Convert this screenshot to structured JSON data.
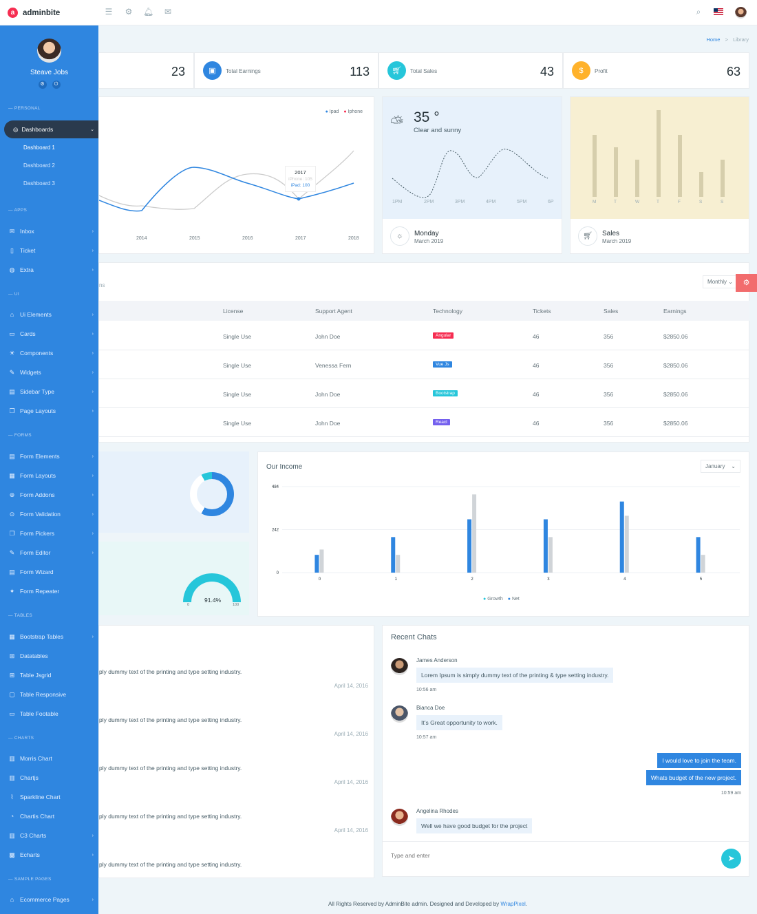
{
  "brand": {
    "name": "adminbite",
    "mark": "a"
  },
  "topbar": {
    "icons": [
      "menu-icon",
      "apps-icon",
      "bell-icon",
      "mail-icon",
      "search-icon",
      "us-flag-icon",
      "user-avatar"
    ]
  },
  "breadcrumb": {
    "home": "Home",
    "separator": ">",
    "current": "Library"
  },
  "sidebar": {
    "profile_name": "Steave Jobs",
    "sections": {
      "personal": "PERSONAL",
      "apps": "APPS",
      "ui": "UI",
      "forms": "FORMS",
      "tables": "TABLES",
      "charts": "CHARTS",
      "sample": "SAMPLE PAGES"
    },
    "active": "Dashboards",
    "sub": [
      "Dashboard 1",
      "Dashboard 2",
      "Dashboard 3"
    ],
    "apps": [
      "Inbox",
      "Ticket",
      "Extra"
    ],
    "ui": [
      "Ui Elements",
      "Cards",
      "Components",
      "Widgets",
      "Sidebar Type",
      "Page Layouts"
    ],
    "forms": [
      "Form Elements",
      "Form Layouts",
      "Form Addons",
      "Form Validation",
      "Form Pickers",
      "Form Editor",
      "Form Wizard",
      "Form Repeater"
    ],
    "tables": [
      "Bootstrap Tables",
      "Datatables",
      "Table Jsgrid",
      "Table Responsive",
      "Table Footable"
    ],
    "charts": [
      "Morris Chart",
      "Chartjs",
      "Sparkline Chart",
      "Chartis Chart",
      "C3 Charts",
      "Echarts"
    ],
    "sample": [
      "Ecommerce Pages"
    ]
  },
  "stats": [
    {
      "value": "23"
    },
    {
      "label": "Total Earnings",
      "value": "113",
      "color": "#2f86e0"
    },
    {
      "label": "Total Sales",
      "value": "43",
      "color": "#26c6da"
    },
    {
      "label": "Profit",
      "value": "63",
      "color": "#ffb22b",
      "symbol": "$"
    }
  ],
  "line_chart": {
    "legend": [
      "Ipad",
      "Iphone"
    ],
    "x_ticks": [
      "2014",
      "2015",
      "2016",
      "2017",
      "2018"
    ],
    "tooltip": {
      "title": "2017",
      "iphone": "iPhone: 105",
      "ipad": "iPad: 100"
    }
  },
  "weather": {
    "temp": "35 °",
    "desc": "Clear and sunny",
    "times": [
      "1PM",
      "2PM",
      "3PM",
      "4PM",
      "5PM",
      "6P"
    ],
    "day": "Monday",
    "date": "March 2019"
  },
  "sales_card": {
    "days": [
      "M",
      "T",
      "W",
      "T",
      "F",
      "S",
      "S"
    ],
    "values": [
      90,
      72,
      54,
      126,
      90,
      36,
      54
    ],
    "title": "Sales",
    "date": "March 2019"
  },
  "projects": {
    "partial_title": "ns",
    "filter": "Monthly",
    "headers": [
      "License",
      "Support Agent",
      "Technology",
      "Tickets",
      "Sales",
      "Earnings"
    ],
    "rows": [
      {
        "license": "Single Use",
        "agent": "John Doe",
        "tech": "Angular",
        "color": "#f62d51",
        "tickets": "46",
        "sales": "356",
        "earnings": "$2850.06"
      },
      {
        "license": "Single Use",
        "agent": "Venessa Fern",
        "tech": "Vue Js",
        "color": "#2f86e0",
        "tickets": "46",
        "sales": "356",
        "earnings": "$2850.06"
      },
      {
        "license": "Single Use",
        "agent": "John Doe",
        "tech": "Bootstrap",
        "color": "#26c6da",
        "tickets": "46",
        "sales": "356",
        "earnings": "$2850.06"
      },
      {
        "license": "Single Use",
        "agent": "John Doe",
        "tech": "React",
        "color": "#7460ee",
        "tickets": "46",
        "sales": "356",
        "earnings": "$2850.06"
      }
    ]
  },
  "gauge": {
    "value": "91.4%",
    "min": "0",
    "max": "100"
  },
  "income": {
    "title": "Our Income",
    "filter": "January",
    "legend": [
      "Growth",
      "Net"
    ]
  },
  "chart_data": {
    "type": "bar",
    "categories": [
      "0",
      "1",
      "2",
      "3",
      "4",
      "5"
    ],
    "series": [
      {
        "name": "Growth",
        "values": [
          100,
          200,
          300,
          300,
          400,
          200
        ]
      },
      {
        "name": "Net",
        "values": [
          130,
          100,
          440,
          200,
          320,
          100
        ]
      }
    ],
    "y_ticks": [
      "0",
      "242",
      "484"
    ],
    "ylim": [
      0,
      484
    ]
  },
  "feed": {
    "text": "ply dummy text of the printing and type setting industry.",
    "date": "April 14, 2016"
  },
  "chats": {
    "title": "Recent Chats",
    "messages": [
      {
        "name": "James Anderson",
        "text": "Lorem Ipsum is simply dummy text of the printing & type setting industry.",
        "time": "10:56 am"
      },
      {
        "name": "Bianca Doe",
        "text": "It’s Great opportunity to work.",
        "time": "10:57 am"
      },
      {
        "me1": "I would love to join the team.",
        "me2": "Whats budget of the new project.",
        "time": "10:59 am"
      },
      {
        "name": "Angelina Rhodes",
        "text": "Well we have good budget for the project"
      }
    ],
    "placeholder": "Type and enter"
  },
  "footer": {
    "text": "All Rights Reserved by AdminBite admin. Designed and Developed by ",
    "link": "WrapPixel",
    "end": "."
  }
}
